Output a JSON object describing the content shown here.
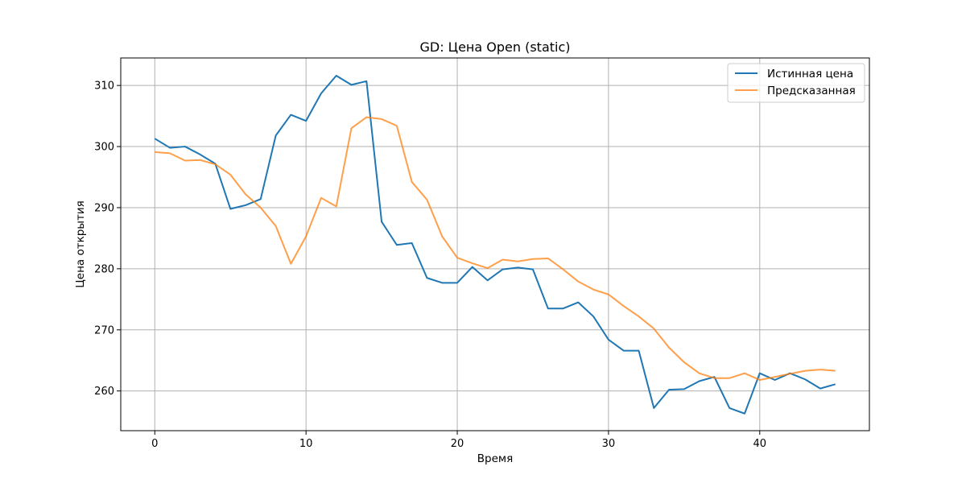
{
  "chart_data": {
    "type": "line",
    "title": "GD: Цена Open (static)",
    "xlabel": "Время",
    "ylabel": "Цена открытия",
    "xlim": [
      -2.25,
      47.25
    ],
    "ylim": [
      253.5,
      314.5
    ],
    "xticks": [
      0,
      10,
      20,
      30,
      40
    ],
    "yticks": [
      260,
      270,
      280,
      290,
      300,
      310
    ],
    "grid": true,
    "legend_position": "top-right",
    "x": [
      0,
      1,
      2,
      3,
      4,
      5,
      6,
      7,
      8,
      9,
      10,
      11,
      12,
      13,
      14,
      15,
      16,
      17,
      18,
      19,
      20,
      21,
      22,
      23,
      24,
      25,
      26,
      27,
      28,
      29,
      30,
      31,
      32,
      33,
      34,
      35,
      36,
      37,
      38,
      39,
      40,
      41,
      42,
      43,
      44,
      45
    ],
    "series": [
      {
        "name": "Истинная цена",
        "color": "#1f77b4",
        "values": [
          301.3,
          299.8,
          300.0,
          298.7,
          297.2,
          289.8,
          290.4,
          291.4,
          301.8,
          305.2,
          304.2,
          308.7,
          311.6,
          310.1,
          310.7,
          287.7,
          283.9,
          284.2,
          278.5,
          277.7,
          277.7,
          280.3,
          278.1,
          279.9,
          280.2,
          279.9,
          273.5,
          273.5,
          274.5,
          272.2,
          268.4,
          266.6,
          266.6,
          257.2,
          260.2,
          260.3,
          261.6,
          262.3,
          257.2,
          256.3,
          262.9,
          261.8,
          262.9,
          261.9,
          260.4,
          261.1
        ]
      },
      {
        "name": "Предсказанная",
        "color": "#ff7f0e",
        "values": [
          299.1,
          298.9,
          297.7,
          297.8,
          297.1,
          295.4,
          292.2,
          290.0,
          287.0,
          280.8,
          285.3,
          291.6,
          290.2,
          303.0,
          304.8,
          304.5,
          303.4,
          294.2,
          291.3,
          285.3,
          281.8,
          280.9,
          280.1,
          281.5,
          281.2,
          281.6,
          281.7,
          279.9,
          277.9,
          276.6,
          275.8,
          273.9,
          272.2,
          270.2,
          267.1,
          264.7,
          262.9,
          262.1,
          262.1,
          262.9,
          261.8,
          262.3,
          262.8,
          263.3,
          263.5,
          263.3
        ]
      }
    ]
  }
}
